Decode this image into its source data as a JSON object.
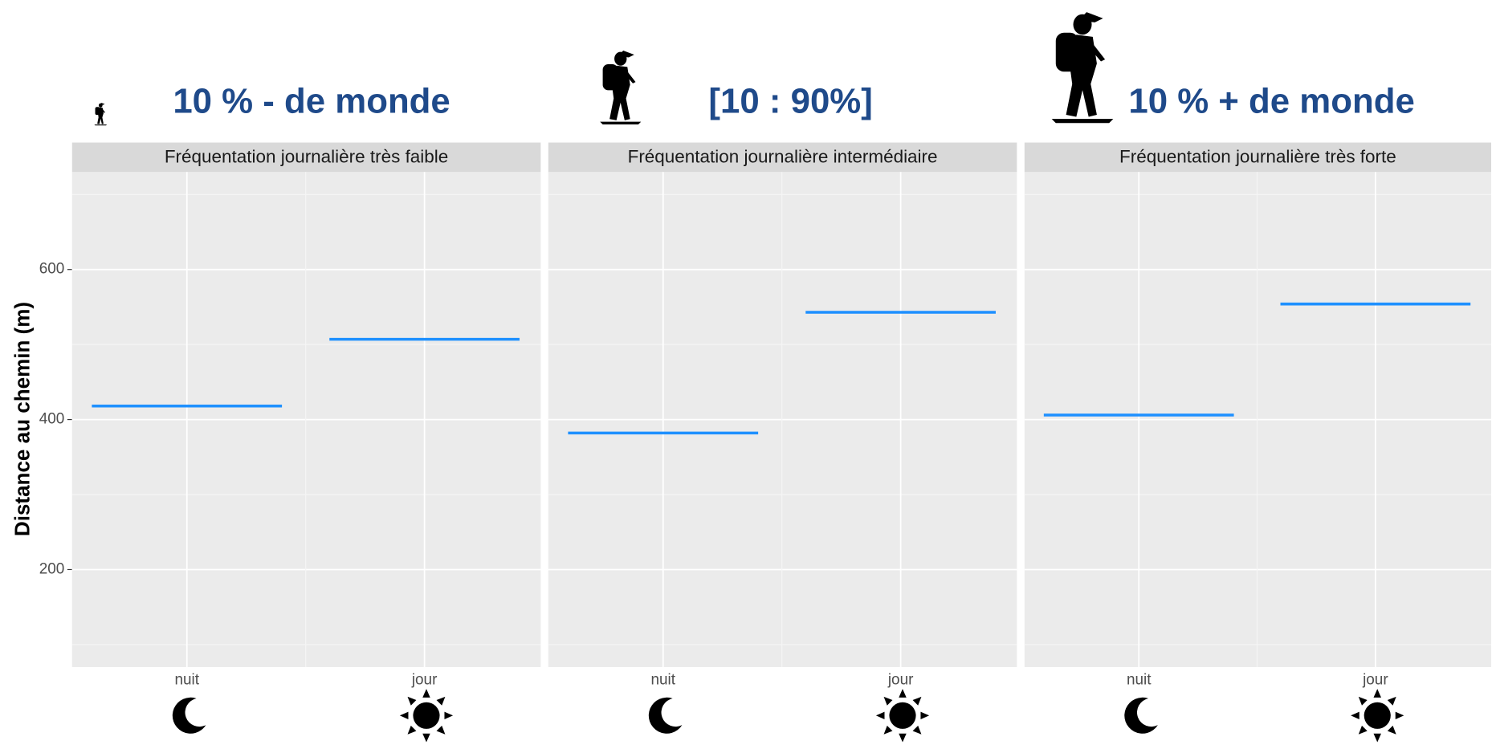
{
  "chart_data": {
    "type": "crossbar",
    "ylabel": "Distance au chemin (m)",
    "categories": [
      "nuit",
      "jour"
    ],
    "color": "#1e90ff",
    "ylim": [
      70,
      730
    ],
    "yticks": [
      200,
      400,
      600
    ],
    "grid": true,
    "facets": [
      {
        "title": "10 % - de monde",
        "strip": "Fréquentation journalière très faible",
        "values": [
          418,
          507
        ]
      },
      {
        "title": "[10 : 90%]",
        "strip": "Fréquentation journalière intermédiaire",
        "values": [
          382,
          543
        ]
      },
      {
        "title": "10 % + de monde",
        "strip": "Fréquentation journalière très forte",
        "values": [
          406,
          554
        ]
      }
    ]
  }
}
